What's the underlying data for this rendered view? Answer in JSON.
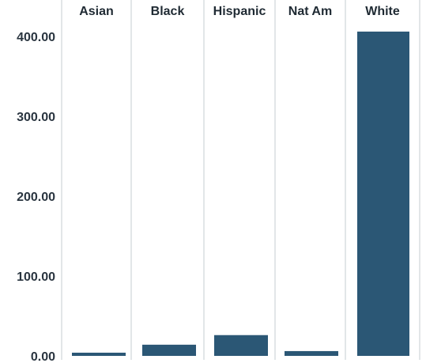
{
  "chart_data": {
    "type": "bar",
    "categories": [
      "Asian",
      "Black",
      "Hispanic",
      "Nat Am",
      "White"
    ],
    "values": [
      4,
      14,
      26,
      6,
      406
    ],
    "ylim": [
      0,
      420
    ],
    "yticks": [
      0,
      100,
      200,
      300,
      400
    ],
    "ytick_labels": [
      "0.00",
      "100.00",
      "200.00",
      "300.00",
      "400.00"
    ],
    "title": "",
    "xlabel": "",
    "ylabel": "",
    "grid": false,
    "bar_color": "#2b5775",
    "panel_border_color": "#d9dde1"
  }
}
